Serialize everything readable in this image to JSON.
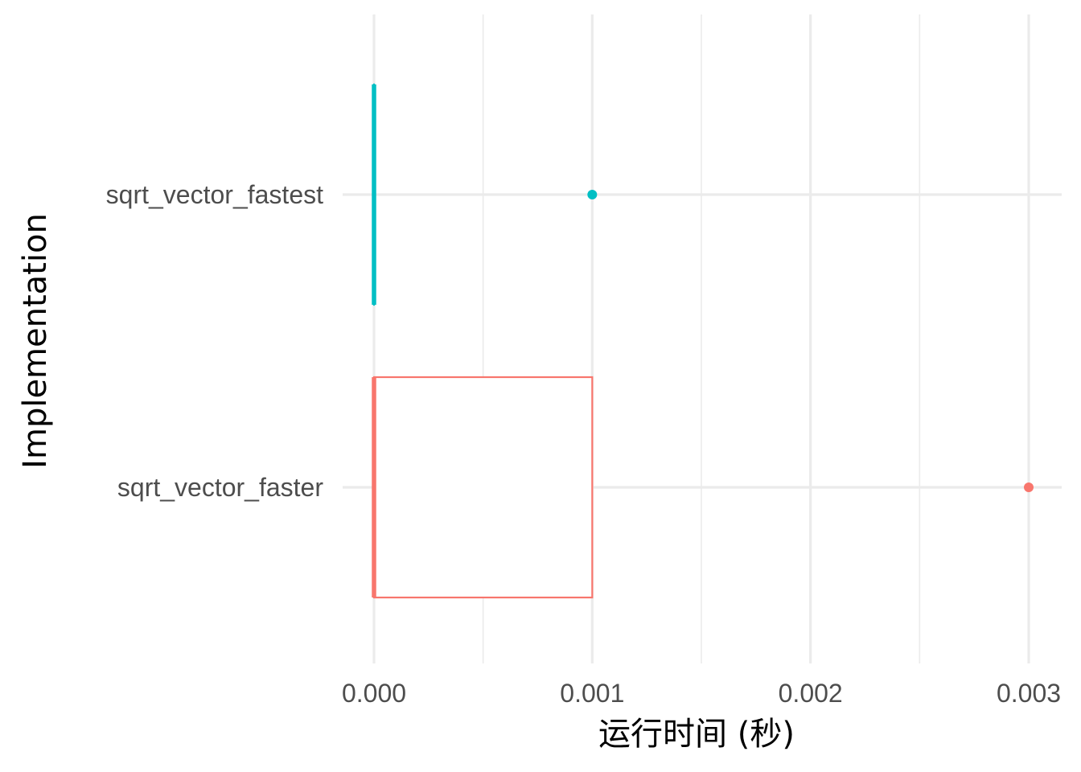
{
  "chart_data": {
    "type": "boxplot",
    "orientation": "horizontal",
    "xlabel": "运行时间 (秒)",
    "ylabel": "Implementation",
    "xlim": [
      0,
      0.003
    ],
    "x_ticks": [
      "0.000",
      "0.001",
      "0.002",
      "0.003"
    ],
    "x_tick_values": [
      0,
      0.001,
      0.002,
      0.003
    ],
    "categories": [
      "sqrt_vector_fastest",
      "sqrt_vector_faster"
    ],
    "series": [
      {
        "name": "sqrt_vector_fastest",
        "color": "#00BFC4",
        "min": 0,
        "q1": 0,
        "median": 0,
        "q3": 0,
        "max": 0,
        "outliers": [
          0.001
        ]
      },
      {
        "name": "sqrt_vector_faster",
        "color": "#F8766D",
        "min": 0,
        "q1": 0,
        "median": 0,
        "q3": 0.001,
        "max": 0.001,
        "outliers": [
          0.003
        ]
      }
    ],
    "grid": true,
    "legend": "none"
  }
}
